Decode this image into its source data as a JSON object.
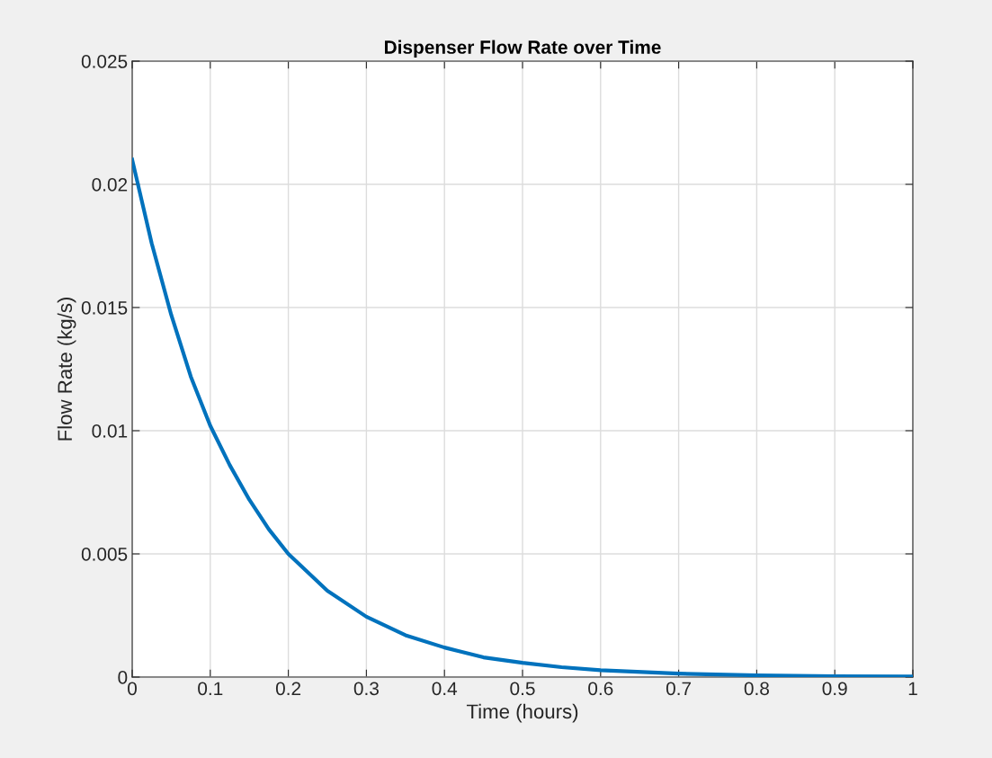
{
  "chart_data": {
    "type": "line",
    "title": "Dispenser Flow Rate over Time",
    "xlabel": "Time (hours)",
    "ylabel": "Flow Rate (kg/s)",
    "x": [
      0,
      0.025,
      0.05,
      0.075,
      0.1,
      0.125,
      0.15,
      0.175,
      0.2,
      0.25,
      0.3,
      0.35,
      0.4,
      0.45,
      0.5,
      0.55,
      0.6,
      0.7,
      0.8,
      0.9,
      1.0
    ],
    "series": [
      {
        "color": "#0072bd",
        "values": [
          0.021,
          0.0176,
          0.0147,
          0.0122,
          0.0102,
          0.0086,
          0.0072,
          0.006,
          0.005,
          0.0035,
          0.00245,
          0.0017,
          0.0012,
          0.0008,
          0.00058,
          0.0004,
          0.00028,
          0.00014,
          7e-05,
          3e-05,
          2e-05
        ]
      }
    ],
    "xlim": [
      0,
      1
    ],
    "xticks": [
      0,
      0.1,
      0.2,
      0.3,
      0.4,
      0.5,
      0.6,
      0.7,
      0.8,
      0.9,
      1
    ],
    "ylim": [
      0,
      0.025
    ],
    "yticks": [
      0,
      0.005,
      0.01,
      0.015,
      0.02,
      0.025
    ],
    "grid": true,
    "marker": "none",
    "line_style": "solid"
  }
}
